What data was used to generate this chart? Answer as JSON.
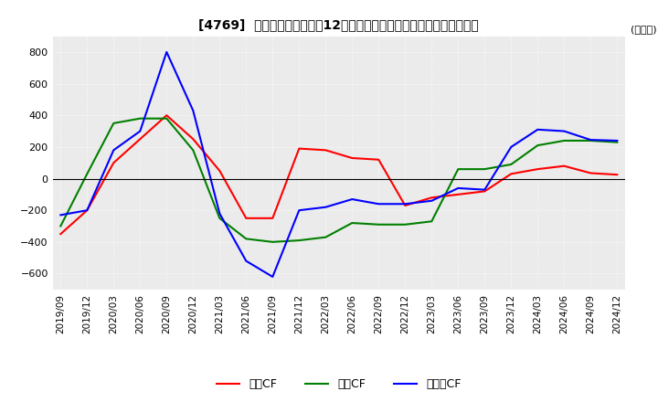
{
  "title": "[4769]  キャッシュフローの12か月移動合計の対前年同期増減額の推移",
  "ylabel": "(百万円)",
  "ylim": [
    -700,
    900
  ],
  "yticks": [
    -600,
    -400,
    -200,
    0,
    200,
    400,
    600,
    800
  ],
  "x_labels": [
    "2019/09",
    "2019/12",
    "2020/03",
    "2020/06",
    "2020/09",
    "2020/12",
    "2021/03",
    "2021/06",
    "2021/09",
    "2021/12",
    "2022/03",
    "2022/06",
    "2022/09",
    "2022/12",
    "2023/03",
    "2023/06",
    "2023/09",
    "2023/12",
    "2024/03",
    "2024/06",
    "2024/09",
    "2024/12"
  ],
  "operating_cf": [
    -350,
    -200,
    100,
    250,
    400,
    250,
    50,
    -250,
    -250,
    190,
    180,
    130,
    120,
    -170,
    -120,
    -100,
    -80,
    30,
    60,
    80,
    35,
    25
  ],
  "investing_cf": [
    -300,
    30,
    350,
    380,
    380,
    180,
    -250,
    -380,
    -400,
    -390,
    -370,
    -280,
    -290,
    -290,
    -270,
    60,
    60,
    90,
    210,
    240,
    240,
    230
  ],
  "free_cf": [
    -230,
    -200,
    180,
    300,
    800,
    430,
    -220,
    -520,
    -620,
    -200,
    -180,
    -130,
    -160,
    -160,
    -140,
    -60,
    -70,
    200,
    310,
    300,
    245,
    240
  ],
  "operating_color": "#ff0000",
  "investing_color": "#008000",
  "free_color": "#0000ff",
  "background_color": "#ffffff",
  "plot_bg_color": "#ebebeb",
  "grid_color": "#ffffff",
  "legend_labels": [
    "営業CF",
    "投資CF",
    "フリーCF"
  ]
}
